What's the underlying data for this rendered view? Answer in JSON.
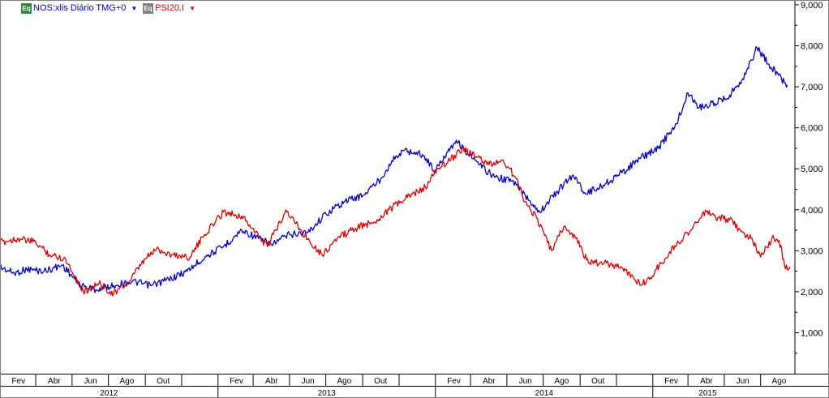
{
  "legend": {
    "series1": {
      "badge": "Eq",
      "label": "NOS:xlis Diário TMG+0",
      "color": "#0000cc",
      "badge_color": "#2e8b3e"
    },
    "series2": {
      "badge": "Eq",
      "label": "PSI20.I",
      "color": "#dd0000",
      "badge_color": "#808080"
    }
  },
  "chart_data": {
    "type": "line",
    "ylim": [
      0,
      9000
    ],
    "y_ticks": [
      "1,000",
      "2,000",
      "3,000",
      "4,000",
      "5,000",
      "6,000",
      "7,000",
      "8,000",
      "9,000"
    ],
    "grid": false,
    "legend_position": "top-left",
    "x_months": [
      "Fev",
      "Abr",
      "Jun",
      "Ago",
      "Out",
      "Fev",
      "Abr",
      "Jun",
      "Ago",
      "Out",
      "Fev",
      "Abr",
      "Jun",
      "Ago",
      "Out",
      "Fev",
      "Abr",
      "Jun",
      "Ago"
    ],
    "x_years": [
      "2012",
      "2013",
      "2014",
      "2015"
    ],
    "series": [
      {
        "name": "NOS:xlis Diário TMG+0",
        "color": "#0000cc",
        "points": [
          [
            "2012-01-01",
            2600
          ],
          [
            "2012-01-25",
            2450
          ],
          [
            "2012-02-15",
            2550
          ],
          [
            "2012-03-15",
            2500
          ],
          [
            "2012-04-15",
            2650
          ],
          [
            "2012-05-15",
            2150
          ],
          [
            "2012-06-10",
            2050
          ],
          [
            "2012-07-10",
            2150
          ],
          [
            "2012-08-10",
            2250
          ],
          [
            "2012-09-10",
            2150
          ],
          [
            "2012-10-10",
            2300
          ],
          [
            "2012-11-10",
            2500
          ],
          [
            "2012-12-10",
            2850
          ],
          [
            "2013-01-10",
            3100
          ],
          [
            "2013-02-10",
            3500
          ],
          [
            "2013-03-10",
            3300
          ],
          [
            "2013-04-01",
            3150
          ],
          [
            "2013-05-01",
            3400
          ],
          [
            "2013-06-01",
            3450
          ],
          [
            "2013-07-01",
            3900
          ],
          [
            "2013-08-01",
            4200
          ],
          [
            "2013-09-01",
            4350
          ],
          [
            "2013-10-01",
            4750
          ],
          [
            "2013-10-20",
            5200
          ],
          [
            "2013-11-10",
            5450
          ],
          [
            "2013-12-10",
            5350
          ],
          [
            "2014-01-01",
            4950
          ],
          [
            "2014-01-20",
            5400
          ],
          [
            "2014-02-05",
            5700
          ],
          [
            "2014-02-25",
            5350
          ],
          [
            "2014-03-15",
            5100
          ],
          [
            "2014-04-10",
            4800
          ],
          [
            "2014-05-10",
            4700
          ],
          [
            "2014-06-01",
            4350
          ],
          [
            "2014-06-25",
            3950
          ],
          [
            "2014-07-25",
            4450
          ],
          [
            "2014-08-20",
            4850
          ],
          [
            "2014-09-10",
            4400
          ],
          [
            "2014-10-10",
            4600
          ],
          [
            "2014-11-10",
            4900
          ],
          [
            "2014-12-10",
            5250
          ],
          [
            "2015-01-10",
            5500
          ],
          [
            "2015-02-10",
            6100
          ],
          [
            "2015-03-01",
            6850
          ],
          [
            "2015-03-20",
            6500
          ],
          [
            "2015-04-15",
            6600
          ],
          [
            "2015-05-10",
            6800
          ],
          [
            "2015-06-01",
            7200
          ],
          [
            "2015-06-25",
            7950
          ],
          [
            "2015-07-15",
            7550
          ],
          [
            "2015-08-05",
            7200
          ],
          [
            "2015-08-15",
            7050
          ]
        ]
      },
      {
        "name": "PSI20.I",
        "color": "#dd0000",
        "points": [
          [
            "2012-01-01",
            3200
          ],
          [
            "2012-02-01",
            3300
          ],
          [
            "2012-03-01",
            3200
          ],
          [
            "2012-03-25",
            2900
          ],
          [
            "2012-04-20",
            2800
          ],
          [
            "2012-05-20",
            2000
          ],
          [
            "2012-06-15",
            2200
          ],
          [
            "2012-07-10",
            1950
          ],
          [
            "2012-08-05",
            2250
          ],
          [
            "2012-09-01",
            2800
          ],
          [
            "2012-09-20",
            3050
          ],
          [
            "2012-10-15",
            2900
          ],
          [
            "2012-11-15",
            2850
          ],
          [
            "2012-12-10",
            3400
          ],
          [
            "2013-01-10",
            3950
          ],
          [
            "2013-02-10",
            3850
          ],
          [
            "2013-03-05",
            3450
          ],
          [
            "2013-03-25",
            3100
          ],
          [
            "2013-04-25",
            4000
          ],
          [
            "2013-05-20",
            3500
          ],
          [
            "2013-06-25",
            2900
          ],
          [
            "2013-07-20",
            3300
          ],
          [
            "2013-08-20",
            3550
          ],
          [
            "2013-09-20",
            3700
          ],
          [
            "2013-10-15",
            4000
          ],
          [
            "2013-11-15",
            4300
          ],
          [
            "2013-12-15",
            4550
          ],
          [
            "2014-01-05",
            5000
          ],
          [
            "2014-01-25",
            5200
          ],
          [
            "2014-02-15",
            5500
          ],
          [
            "2014-03-10",
            5300
          ],
          [
            "2014-04-01",
            5100
          ],
          [
            "2014-04-25",
            5200
          ],
          [
            "2014-05-15",
            4800
          ],
          [
            "2014-06-01",
            4200
          ],
          [
            "2014-06-20",
            3800
          ],
          [
            "2014-07-15",
            3000
          ],
          [
            "2014-08-05",
            3600
          ],
          [
            "2014-08-25",
            3300
          ],
          [
            "2014-09-15",
            2700
          ],
          [
            "2014-10-15",
            2700
          ],
          [
            "2014-11-10",
            2600
          ],
          [
            "2014-12-01",
            2300
          ],
          [
            "2014-12-20",
            2200
          ],
          [
            "2015-01-15",
            2700
          ],
          [
            "2015-02-10",
            3150
          ],
          [
            "2015-03-10",
            3600
          ],
          [
            "2015-04-01",
            3950
          ],
          [
            "2015-04-20",
            3800
          ],
          [
            "2015-05-10",
            3750
          ],
          [
            "2015-06-01",
            3450
          ],
          [
            "2015-06-15",
            3300
          ],
          [
            "2015-07-01",
            2850
          ],
          [
            "2015-07-20",
            3300
          ],
          [
            "2015-08-01",
            3250
          ],
          [
            "2015-08-10",
            2650
          ],
          [
            "2015-08-20",
            2600
          ]
        ]
      }
    ]
  }
}
